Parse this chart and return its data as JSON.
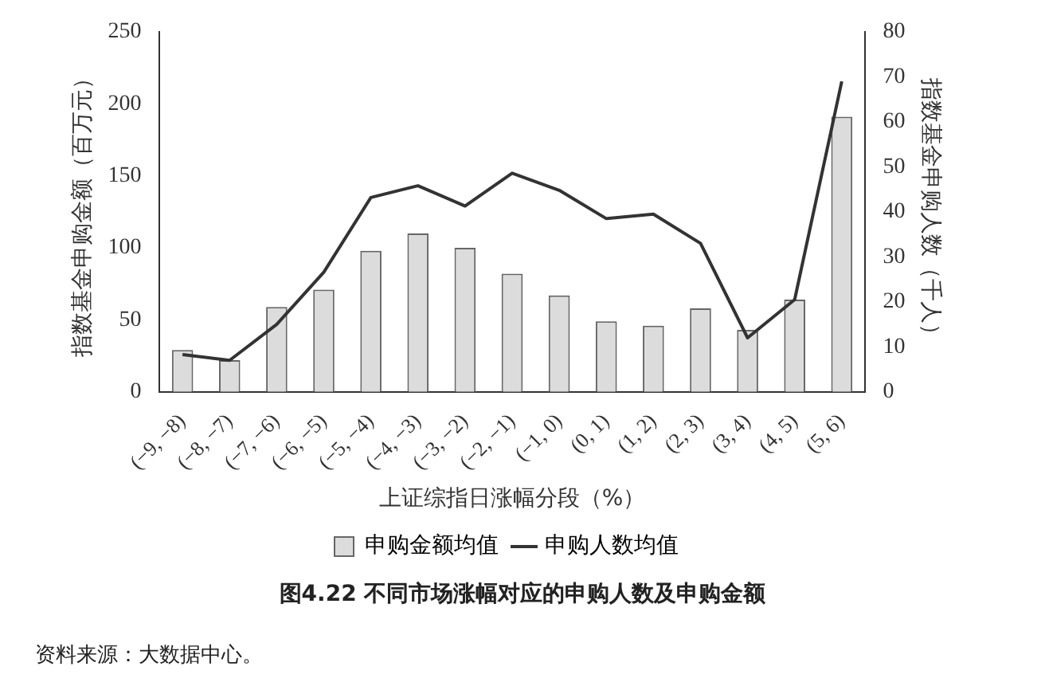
{
  "chart_data": {
    "type": "bar",
    "title": "图4.22 不同市场涨幅对应的申购人数及申购金额",
    "xlabel": "上证综指日涨幅分段（%）",
    "ylabel": "指数基金申购金额（百万元）",
    "y2label": "指数基金申购人数（千人）",
    "annotations": [
      "资料来源：大数据中心。"
    ],
    "categories": [
      "(−9, −8)",
      "(−8, −7)",
      "(−7, −6)",
      "(−6, −5)",
      "(−5, −4)",
      "(−4, −3)",
      "(−3, −2)",
      "(−2, −1)",
      "(−1, 0)",
      "(0, 1)",
      "(1, 2)",
      "(2, 3)",
      "(3, 4)",
      "(4, 5)",
      "(5, 6)"
    ],
    "series": [
      {
        "name": "申购金额均值",
        "color": "#dcdcdc",
        "values": [
          29,
          22,
          59,
          71,
          98,
          110,
          100,
          82,
          67,
          49,
          46,
          58,
          43,
          64,
          191
        ]
      },
      {
        "name": "申购人数均值",
        "type": "line",
        "axis": "y2",
        "color": "#333333",
        "values": [
          8.3,
          7,
          15,
          26.6,
          43.2,
          45.8,
          41.3,
          48.6,
          44.8,
          38.5,
          39.5,
          33,
          12,
          20.5,
          69
        ]
      }
    ],
    "ylim": [
      0,
      250
    ],
    "yticks": [
      0,
      50,
      100,
      150,
      200,
      250
    ],
    "y2lim": [
      0,
      80
    ],
    "y2ticks": [
      0,
      10,
      20,
      30,
      40,
      50,
      60,
      70,
      80
    ],
    "grid": false,
    "legend": "bottom",
    "marker": "none",
    "line_style": "solid"
  }
}
